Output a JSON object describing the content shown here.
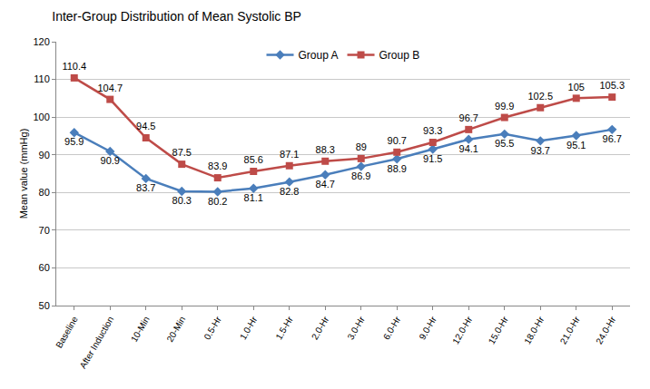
{
  "chart_data": {
    "type": "line",
    "title": "Inter-Group Distribution of Mean Systolic BP",
    "y_label": "Mean value (mmHg)",
    "categories": [
      "Baseline",
      "After Induction",
      "10-Min",
      "20-Min",
      "0.5-Hr",
      "1.0-Hr",
      "1.5-Hr",
      "2.0-Hr",
      "3.0-Hr",
      "6.0-Hr",
      "9.0-Hr",
      "12.0-Hr",
      "15.0-Hr",
      "18.0-Hr",
      "21.0-Hr",
      "24.0-Hr"
    ],
    "series": [
      {
        "name": "Group A",
        "color": "#4a7ebb",
        "marker": "diamond",
        "values": [
          95.9,
          90.9,
          83.7,
          80.3,
          80.2,
          81.1,
          82.8,
          84.7,
          86.9,
          88.9,
          91.5,
          94.1,
          95.5,
          93.7,
          95.1,
          96.7
        ]
      },
      {
        "name": "Group B",
        "color": "#be4b48",
        "marker": "square",
        "values": [
          110.4,
          104.7,
          94.5,
          87.5,
          83.9,
          85.6,
          87.1,
          88.3,
          89,
          90.7,
          93.3,
          96.7,
          99.9,
          102.5,
          105,
          105.3
        ]
      }
    ],
    "ylim": [
      50,
      120
    ],
    "yticks": [
      50,
      60,
      70,
      80,
      90,
      100,
      110,
      120
    ],
    "grid": true,
    "legend": "top",
    "data_labels": true
  }
}
